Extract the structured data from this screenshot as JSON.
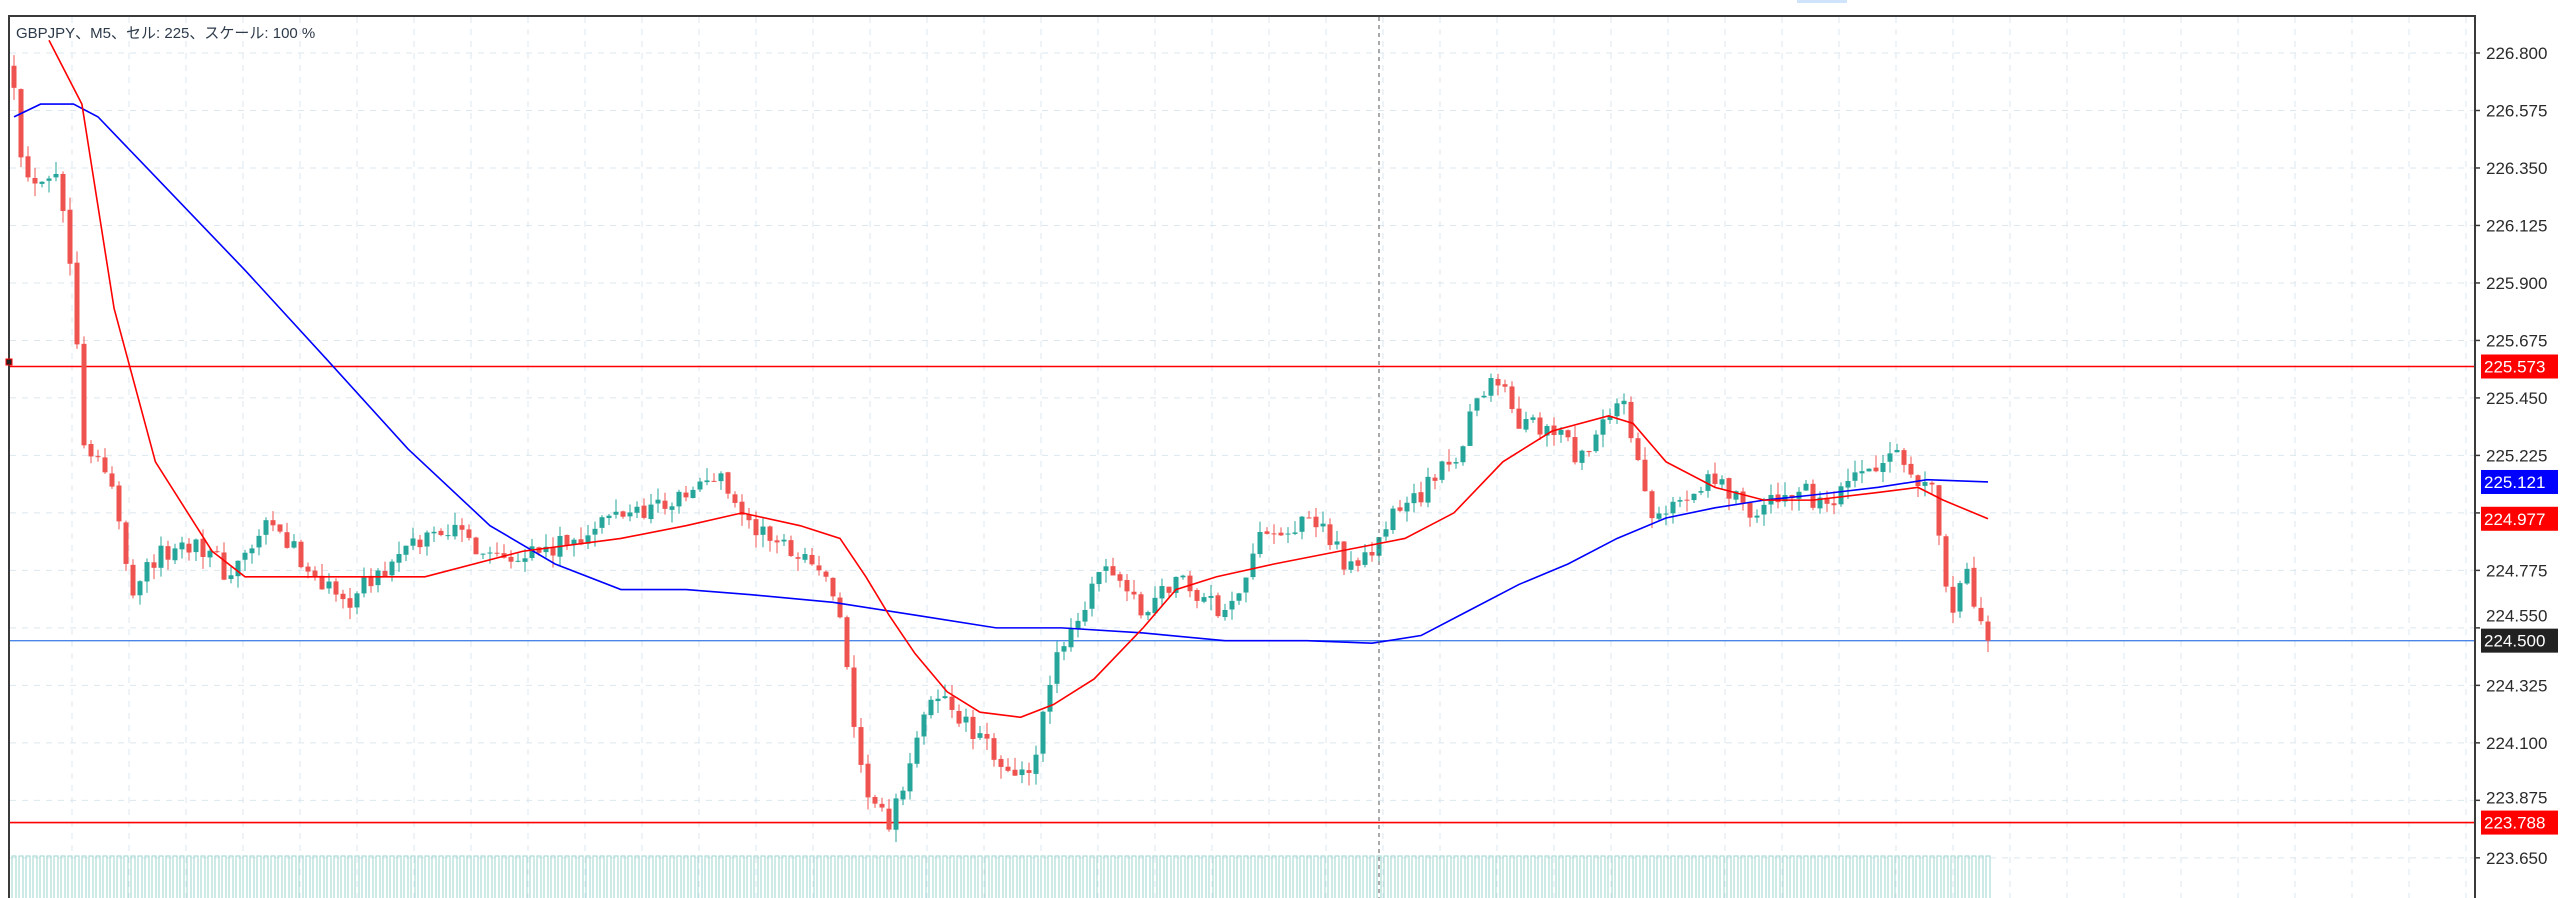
{
  "header": {
    "title": "GBPJPY、M5、セル: 225、スケール: 100 %"
  },
  "colors": {
    "up": "#26a69a",
    "down": "#ef5350",
    "fast_ma": "#ff0000",
    "slow_ma": "#0000ff",
    "level_line": "#ff0000",
    "bid_line": "#4a86e8",
    "volume": "#9bd6cf",
    "grid": "#dce7ef"
  },
  "chart_data": {
    "type": "candlestick",
    "symbol": "GBPJPY",
    "timeframe": "M5",
    "bar_count": 283,
    "ylim": [
      223.55,
      226.95
    ],
    "y_ticks": [
      "226.800",
      "226.575",
      "226.350",
      "226.125",
      "225.900",
      "225.675",
      "225.450",
      "225.225",
      "224.775",
      "224.550",
      "224.325",
      "224.100",
      "223.875",
      "223.650"
    ],
    "price_path": [
      [
        0,
        226.7
      ],
      [
        1.5,
        226.3
      ],
      [
        6,
        226.35
      ],
      [
        8.5,
        225.9
      ],
      [
        10,
        225.3
      ],
      [
        14,
        225.1
      ],
      [
        16.7,
        224.7
      ],
      [
        19,
        224.8
      ],
      [
        26,
        224.9
      ],
      [
        30.7,
        224.75
      ],
      [
        36.5,
        224.95
      ],
      [
        47,
        224.65
      ],
      [
        54,
        224.8
      ],
      [
        61,
        224.95
      ],
      [
        68,
        224.85
      ],
      [
        77,
        224.85
      ],
      [
        86.7,
        225.0
      ],
      [
        95,
        225.05
      ],
      [
        101,
        225.15
      ],
      [
        105,
        224.95
      ],
      [
        114.7,
        224.8
      ],
      [
        118,
        224.6
      ],
      [
        120.5,
        224.0
      ],
      [
        125,
        223.75
      ],
      [
        128.7,
        224.1
      ],
      [
        132,
        224.3
      ],
      [
        138,
        224.1
      ],
      [
        145,
        223.95
      ],
      [
        149.7,
        224.5
      ],
      [
        156.7,
        224.8
      ],
      [
        161,
        224.6
      ],
      [
        166,
        224.75
      ],
      [
        173,
        224.6
      ],
      [
        179,
        224.95
      ],
      [
        187,
        224.95
      ],
      [
        191.7,
        224.75
      ],
      [
        197.5,
        225.0
      ],
      [
        205.7,
        225.2
      ],
      [
        209,
        225.45
      ],
      [
        211.5,
        225.55
      ],
      [
        215,
        225.35
      ],
      [
        221,
        225.3
      ],
      [
        224,
        225.2
      ],
      [
        230,
        225.45
      ],
      [
        233.7,
        224.95
      ],
      [
        242,
        225.15
      ],
      [
        249,
        225.0
      ],
      [
        254.7,
        225.1
      ],
      [
        259,
        225.0
      ],
      [
        264,
        225.15
      ],
      [
        270,
        225.22
      ],
      [
        274.5,
        225.05
      ],
      [
        276.8,
        224.6
      ],
      [
        279,
        224.75
      ],
      [
        281,
        224.55
      ],
      [
        282,
        224.5
      ]
    ],
    "fast_ma": [
      [
        5,
        226.85
      ],
      [
        9.7,
        226.6
      ],
      [
        14.3,
        225.8
      ],
      [
        20.2,
        225.2
      ],
      [
        28.3,
        224.85
      ],
      [
        33,
        224.75
      ],
      [
        44.7,
        224.75
      ],
      [
        58.7,
        224.75
      ],
      [
        72.7,
        224.85
      ],
      [
        86.7,
        224.9
      ],
      [
        96,
        224.95
      ],
      [
        104,
        225.0
      ],
      [
        112.3,
        224.95
      ],
      [
        118,
        224.9
      ],
      [
        121.7,
        224.75
      ],
      [
        125,
        224.6
      ],
      [
        128.7,
        224.45
      ],
      [
        133.3,
        224.3
      ],
      [
        138,
        224.22
      ],
      [
        143.8,
        224.2
      ],
      [
        148.5,
        224.25
      ],
      [
        154.3,
        224.35
      ],
      [
        161.3,
        224.55
      ],
      [
        166,
        224.7
      ],
      [
        171.8,
        224.75
      ],
      [
        180,
        224.8
      ],
      [
        189.3,
        224.85
      ],
      [
        198.7,
        224.9
      ],
      [
        205.7,
        225.0
      ],
      [
        212.7,
        225.2
      ],
      [
        219.7,
        225.32
      ],
      [
        227.8,
        225.38
      ],
      [
        231.3,
        225.35
      ],
      [
        236,
        225.2
      ],
      [
        243,
        225.1
      ],
      [
        250,
        225.05
      ],
      [
        257,
        225.05
      ],
      [
        266.3,
        225.08
      ],
      [
        272,
        225.1
      ],
      [
        275.6,
        225.05
      ],
      [
        282,
        224.977
      ]
    ],
    "slow_ma": [
      [
        0,
        226.55
      ],
      [
        3.8,
        226.6
      ],
      [
        8.5,
        226.6
      ],
      [
        12,
        226.55
      ],
      [
        19,
        226.35
      ],
      [
        33,
        225.95
      ],
      [
        44.7,
        225.6
      ],
      [
        56.3,
        225.25
      ],
      [
        68,
        224.95
      ],
      [
        77.3,
        224.8
      ],
      [
        86.7,
        224.7
      ],
      [
        96,
        224.7
      ],
      [
        105.3,
        224.68
      ],
      [
        117,
        224.65
      ],
      [
        128.7,
        224.6
      ],
      [
        140.3,
        224.55
      ],
      [
        149.7,
        224.55
      ],
      [
        161.3,
        224.53
      ],
      [
        173,
        224.5
      ],
      [
        184.7,
        224.5
      ],
      [
        194,
        224.49
      ],
      [
        201,
        224.52
      ],
      [
        208,
        224.62
      ],
      [
        215,
        224.72
      ],
      [
        222,
        224.8
      ],
      [
        229,
        224.9
      ],
      [
        236,
        224.98
      ],
      [
        243,
        225.02
      ],
      [
        250,
        225.05
      ],
      [
        257,
        225.07
      ],
      [
        266.3,
        225.1
      ],
      [
        273.3,
        225.13
      ],
      [
        282,
        225.121
      ]
    ],
    "levels": [
      {
        "name": "resistance",
        "value": 225.573,
        "label": "225.573"
      },
      {
        "name": "support",
        "value": 223.788,
        "label": "223.788"
      }
    ],
    "bid": {
      "value": 224.5,
      "label": "224.500"
    },
    "fast_ma_last": {
      "value": 224.977,
      "label": "224.977"
    },
    "slow_ma_last": {
      "value": 225.121,
      "label": "225.121"
    },
    "crosshair_bar": 195
  }
}
